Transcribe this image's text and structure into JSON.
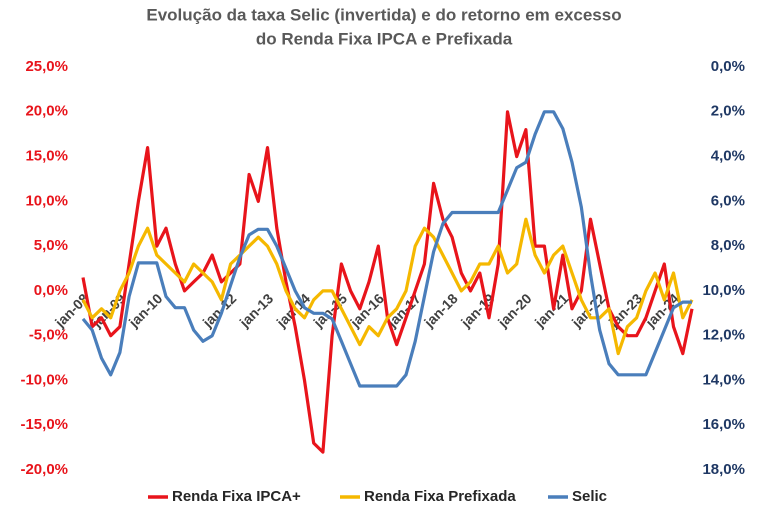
{
  "chart_data": {
    "type": "line",
    "title": [
      "Evolução da taxa Selic (invertida) e do retorno em excesso",
      "do Renda Fixa IPCA e Prefixada"
    ],
    "categories": [
      "jan-08",
      null,
      null,
      null,
      "jan-09",
      null,
      null,
      null,
      "jan-10",
      null,
      null,
      null,
      null,
      null,
      null,
      null,
      "jan-12",
      null,
      null,
      null,
      "jan-13",
      null,
      null,
      null,
      "jan-14",
      null,
      null,
      null,
      "jan-15",
      null,
      null,
      null,
      "jan-16",
      null,
      null,
      null,
      "jan-17",
      null,
      null,
      null,
      "jan-18",
      null,
      null,
      null,
      "jan-19",
      null,
      null,
      null,
      "jan-20",
      null,
      null,
      null,
      "jan-21",
      null,
      null,
      null,
      "jan-22",
      null,
      null,
      null,
      "jan-23",
      null,
      null,
      null,
      "jan-24",
      null,
      null
    ],
    "series": [
      {
        "name": "Renda Fixa IPCA+",
        "color": "#e8141b",
        "values": [
          1.5,
          -4,
          -3,
          -5,
          -4,
          3,
          10,
          16,
          5,
          7,
          3,
          0,
          1,
          2,
          4,
          1,
          2,
          3,
          13,
          10,
          16,
          7,
          1,
          -4,
          -10,
          -17,
          -18,
          -5,
          3,
          0,
          -2,
          1,
          5,
          -3,
          -6,
          -3,
          0,
          3,
          12,
          8,
          6,
          2,
          0,
          2,
          -3,
          3,
          20,
          15,
          18,
          5,
          5,
          -2,
          4,
          -2,
          0,
          8,
          3,
          -2,
          -4,
          -5,
          -5,
          -3,
          0,
          3,
          -4,
          -7,
          -2
        ]
      },
      {
        "name": "Renda Fixa Prefixada",
        "color": "#f5b800",
        "values": [
          -1,
          -3,
          -2,
          -3,
          0,
          2,
          5,
          7,
          4,
          3,
          2,
          1,
          3,
          2,
          1,
          -1,
          3,
          4,
          5,
          6,
          5,
          3,
          0,
          -2,
          -3,
          -1,
          0,
          0,
          -2,
          -4,
          -6,
          -4,
          -5,
          -3,
          -2,
          0,
          5,
          7,
          6,
          4,
          2,
          0,
          1,
          3,
          3,
          5,
          2,
          3,
          8,
          4,
          2,
          4,
          5,
          2,
          -1,
          -3,
          -3,
          -2,
          -7,
          -4,
          -3,
          0,
          2,
          -1,
          2,
          -3,
          -1
        ]
      },
      {
        "name": "Selic",
        "color": "#4a7ebb",
        "axis": "y2",
        "values": [
          11.25,
          11.75,
          13,
          13.75,
          12.75,
          10.25,
          8.75,
          8.75,
          8.75,
          10.25,
          10.75,
          10.75,
          11.75,
          12.25,
          12,
          11,
          9.75,
          8.5,
          7.5,
          7.25,
          7.25,
          8,
          9,
          10,
          10.75,
          11,
          11,
          11.25,
          12.25,
          13.25,
          14.25,
          14.25,
          14.25,
          14.25,
          14.25,
          13.75,
          12.25,
          10.25,
          8.25,
          7,
          6.5,
          6.5,
          6.5,
          6.5,
          6.5,
          6.5,
          5.5,
          4.5,
          4.25,
          3,
          2,
          2,
          2.75,
          4.25,
          6.25,
          9.25,
          11.75,
          13.25,
          13.75,
          13.75,
          13.75,
          13.75,
          12.75,
          11.75,
          10.75,
          10.5,
          10.5
        ]
      }
    ],
    "ylim": [
      -20,
      25
    ],
    "yticks": [
      {
        "value": -20,
        "label": "-20,0%"
      },
      {
        "value": -15,
        "label": "-15,0%"
      },
      {
        "value": -10,
        "label": "-10,0%"
      },
      {
        "value": -5,
        "label": "-5,0%"
      },
      {
        "value": 0,
        "label": "0,0%"
      },
      {
        "value": 5,
        "label": "5,0%"
      },
      {
        "value": 10,
        "label": "10,0%"
      },
      {
        "value": 15,
        "label": "15,0%"
      },
      {
        "value": 20,
        "label": "20,0%"
      },
      {
        "value": 25,
        "label": "25,0%"
      }
    ],
    "y2lim": [
      0,
      18
    ],
    "y2_inverted": true,
    "y2ticks": [
      {
        "value": 0,
        "label": "0,0%"
      },
      {
        "value": 2,
        "label": "2,0%"
      },
      {
        "value": 4,
        "label": "4,0%"
      },
      {
        "value": 6,
        "label": "6,0%"
      },
      {
        "value": 8,
        "label": "8,0%"
      },
      {
        "value": 10,
        "label": "10,0%"
      },
      {
        "value": 12,
        "label": "12,0%"
      },
      {
        "value": 14,
        "label": "14,0%"
      },
      {
        "value": 16,
        "label": "16,0%"
      },
      {
        "value": 18,
        "label": "18,0%"
      }
    ],
    "ytick_color": "#e8141b",
    "y2tick_color": "#1f3864",
    "legend": "bottom",
    "grid": false
  }
}
